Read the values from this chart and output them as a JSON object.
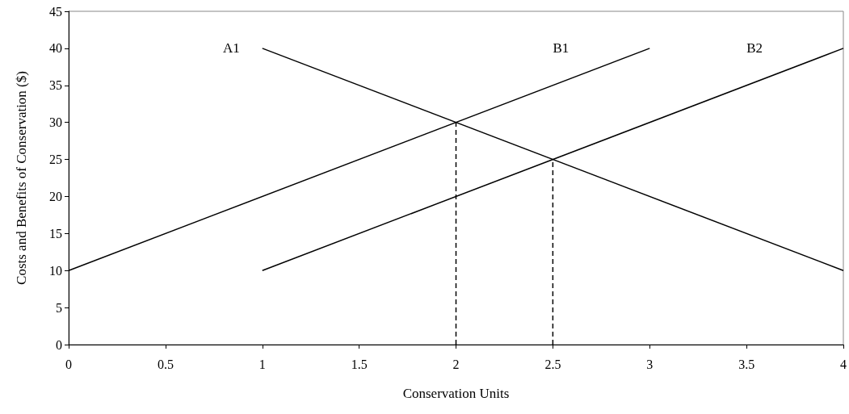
{
  "chart_data": {
    "type": "line",
    "xlabel": "Conservation Units",
    "ylabel": "Costs and Benefits of Conservation ($)",
    "xlim": [
      0,
      4
    ],
    "xticks": [
      0,
      0.5,
      1,
      1.5,
      2,
      2.5,
      3,
      3.5,
      4
    ],
    "ylim": [
      0,
      45
    ],
    "yticks": [
      0,
      5,
      10,
      15,
      20,
      25,
      30,
      35,
      40,
      45
    ],
    "grid": false,
    "legend": false,
    "marker": "none",
    "series": [
      {
        "name": "A1",
        "color": "#000000",
        "x": [
          1,
          4
        ],
        "values": [
          40,
          10
        ]
      },
      {
        "name": "B1",
        "color": "#000000",
        "x": [
          0,
          3
        ],
        "values": [
          10,
          40
        ]
      },
      {
        "name": "B2",
        "color": "#000000",
        "x": [
          1,
          4
        ],
        "values": [
          10,
          40
        ]
      },
      {
        "color": "#000000",
        "x": [
          2,
          2
        ],
        "values": [
          0,
          30
        ],
        "line_style": "dashed"
      },
      {
        "color": "#000000",
        "x": [
          2.5,
          2.5
        ],
        "values": [
          0,
          25
        ],
        "line_style": "dashed"
      }
    ]
  }
}
